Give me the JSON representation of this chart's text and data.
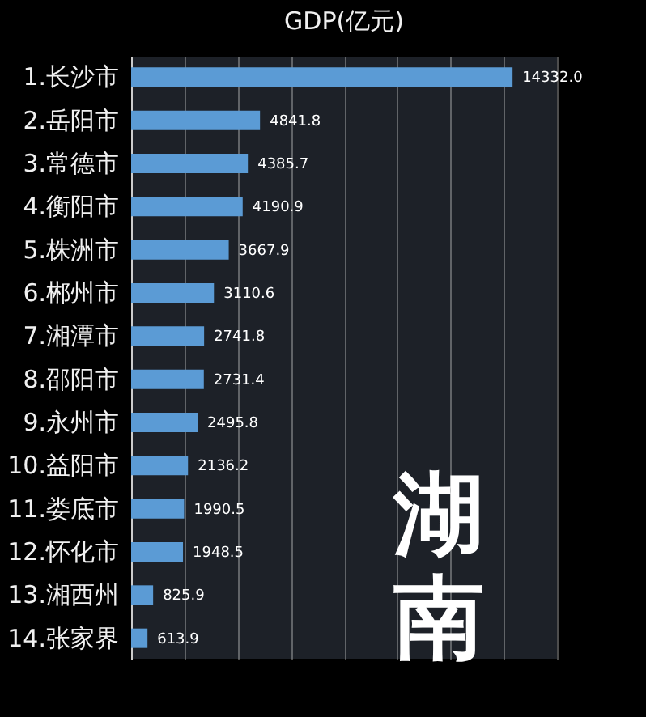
{
  "chart_data": {
    "type": "bar",
    "orientation": "horizontal",
    "title": "GDP(亿元)",
    "categories": [
      "1.长沙市",
      "2.岳阳市",
      "3.常德市",
      "4.衡阳市",
      "5.株洲市",
      "6.郴州市",
      "7.湘潭市",
      "8.邵阳市",
      "9.永州市",
      "10.益阳市",
      "11.娄底市",
      "12.怀化市",
      "13.湘西州",
      "14.张家界"
    ],
    "values": [
      14332.0,
      4841.8,
      4385.7,
      4190.9,
      3667.9,
      3110.6,
      2741.8,
      2731.4,
      2495.8,
      2136.2,
      1990.5,
      1948.5,
      825.9,
      613.9
    ],
    "color": "#5b9bd5",
    "xlim": [
      0,
      16000
    ],
    "xticks": [
      {
        "value": 0,
        "label": null
      },
      {
        "value": 2000,
        "label": null
      },
      {
        "value": 4000,
        "label": null
      },
      {
        "value": 6000,
        "label": null
      },
      {
        "value": 8000,
        "label": null
      },
      {
        "value": 10000,
        "label": null
      },
      {
        "value": 12000,
        "label": null
      },
      {
        "value": 14000,
        "label": null
      },
      {
        "value": 16000,
        "label": null
      }
    ],
    "grid": "x",
    "value_labels": [
      "14332.0",
      "4841.8",
      "4385.7",
      "4190.9",
      "3667.9",
      "3110.6",
      "2741.8",
      "2731.4",
      "2495.8",
      "2136.2",
      "1990.5",
      "1948.5",
      "825.9",
      "613.9"
    ],
    "annotations": [
      {
        "text": "湖南"
      }
    ]
  }
}
